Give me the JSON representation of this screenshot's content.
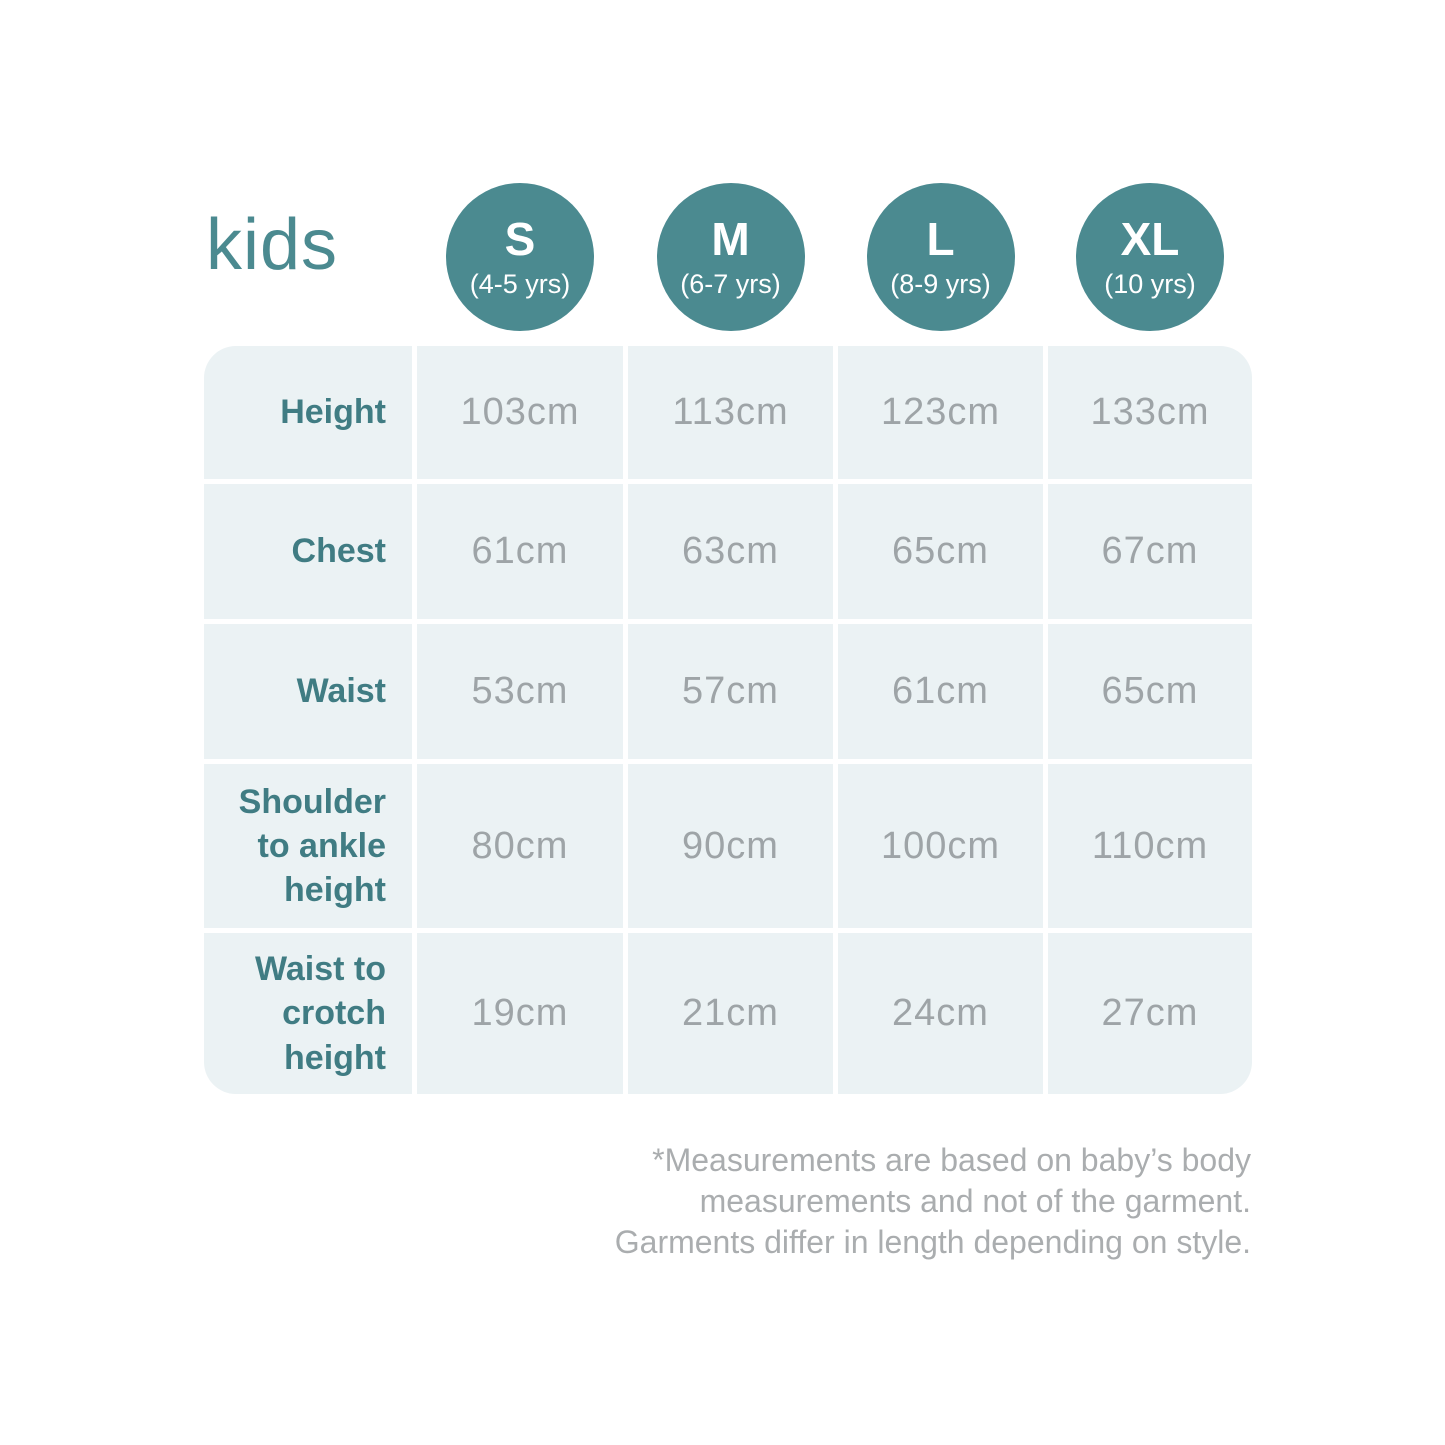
{
  "title": "kids",
  "colors": {
    "accent": "#4b8a90",
    "label_text": "#407c83",
    "value_text": "#9ea4a7",
    "table_background": "#ebf2f4",
    "footnote_text": "#aaadaf"
  },
  "sizes": [
    {
      "label": "S",
      "age": "(4-5 yrs)"
    },
    {
      "label": "M",
      "age": "(6-7 yrs)"
    },
    {
      "label": "L",
      "age": "(8-9 yrs)"
    },
    {
      "label": "XL",
      "age": "(10 yrs)"
    }
  ],
  "rows": [
    {
      "label": "Height",
      "values": [
        "103cm",
        "113cm",
        "123cm",
        "133cm"
      ]
    },
    {
      "label": "Chest",
      "values": [
        "61cm",
        "63cm",
        "65cm",
        "67cm"
      ]
    },
    {
      "label": "Waist",
      "values": [
        "53cm",
        "57cm",
        "61cm",
        "65cm"
      ]
    },
    {
      "label": "Shoulder\nto ankle\nheight",
      "values": [
        "80cm",
        "90cm",
        "100cm",
        "110cm"
      ]
    },
    {
      "label": "Waist to\ncrotch\nheight",
      "values": [
        "19cm",
        "21cm",
        "24cm",
        "27cm"
      ]
    }
  ],
  "footnote": "*Measurements are based on baby’s body\nmeasurements and not of the garment.\nGarments differ in length depending on style.",
  "chart_data": {
    "type": "table",
    "title": "kids",
    "columns": [
      "S (4-5 yrs)",
      "M (6-7 yrs)",
      "L (8-9 yrs)",
      "XL (10 yrs)"
    ],
    "row_labels": [
      "Height",
      "Chest",
      "Waist",
      "Shoulder to ankle height",
      "Waist to crotch height"
    ],
    "rows": [
      [
        "103cm",
        "113cm",
        "123cm",
        "133cm"
      ],
      [
        "61cm",
        "63cm",
        "65cm",
        "67cm"
      ],
      [
        "53cm",
        "57cm",
        "61cm",
        "65cm"
      ],
      [
        "80cm",
        "90cm",
        "100cm",
        "110cm"
      ],
      [
        "19cm",
        "21cm",
        "24cm",
        "27cm"
      ]
    ],
    "footnote": "*Measurements are based on baby’s body measurements and not of the garment. Garments differ in length depending on style.",
    "legend_position": "none",
    "grid": "white gaps between cells"
  }
}
